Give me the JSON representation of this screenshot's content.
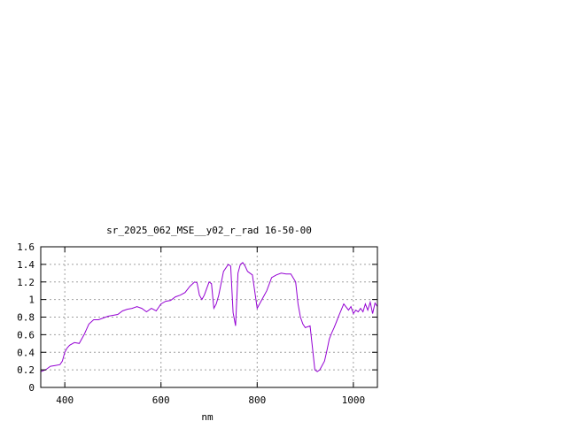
{
  "chart_data": {
    "type": "line",
    "title": "sr_2025_062_MSE__y02_r_rad 16-50-00",
    "xlabel": "nm",
    "ylabel": "",
    "xlim": [
      350,
      1050
    ],
    "ylim": [
      0,
      1.6
    ],
    "xticks": [
      400,
      600,
      800,
      1000
    ],
    "xtick_labels": [
      "400",
      "600",
      "800",
      "1000"
    ],
    "yticks": [
      0,
      0.2,
      0.4,
      0.6,
      0.8,
      1,
      1.2,
      1.4,
      1.6
    ],
    "ytick_labels": [
      "0",
      "0.2",
      "0.4",
      "0.6",
      "0.8",
      "1",
      "1.2",
      "1.4",
      "1.6"
    ],
    "grid": true,
    "legend": "none",
    "line_color": "#9400d3",
    "series": [
      {
        "x": [
          350,
          360,
          370,
          380,
          390,
          395,
          400,
          405,
          410,
          420,
          430,
          440,
          450,
          460,
          470,
          480,
          490,
          500,
          510,
          520,
          530,
          540,
          550,
          560,
          570,
          580,
          590,
          600,
          610,
          620,
          630,
          640,
          650,
          660,
          670,
          675,
          680,
          685,
          690,
          700,
          705,
          710,
          715,
          720,
          730,
          740,
          745,
          750,
          755,
          760,
          765,
          770,
          775,
          780,
          785,
          790,
          800,
          810,
          820,
          830,
          840,
          850,
          860,
          870,
          880,
          885,
          890,
          895,
          900,
          910,
          920,
          925,
          930,
          935,
          940,
          945,
          950,
          955,
          960,
          965,
          970,
          980,
          990,
          995,
          1000,
          1005,
          1010,
          1015,
          1020,
          1025,
          1030,
          1035,
          1040,
          1045,
          1050
        ],
        "y": [
          0.18,
          0.2,
          0.24,
          0.25,
          0.26,
          0.3,
          0.4,
          0.45,
          0.48,
          0.51,
          0.5,
          0.6,
          0.72,
          0.77,
          0.77,
          0.79,
          0.81,
          0.82,
          0.83,
          0.87,
          0.89,
          0.9,
          0.92,
          0.9,
          0.86,
          0.9,
          0.87,
          0.95,
          0.98,
          0.99,
          1.03,
          1.05,
          1.08,
          1.15,
          1.2,
          1.19,
          1.05,
          1.0,
          1.05,
          1.2,
          1.18,
          0.9,
          0.95,
          1.05,
          1.32,
          1.4,
          1.38,
          0.85,
          0.7,
          1.3,
          1.4,
          1.42,
          1.38,
          1.32,
          1.3,
          1.28,
          0.9,
          1.0,
          1.1,
          1.25,
          1.28,
          1.3,
          1.29,
          1.29,
          1.2,
          0.95,
          0.8,
          0.72,
          0.68,
          0.7,
          0.2,
          0.18,
          0.2,
          0.25,
          0.3,
          0.42,
          0.55,
          0.62,
          0.68,
          0.75,
          0.82,
          0.95,
          0.88,
          0.92,
          0.84,
          0.88,
          0.86,
          0.9,
          0.86,
          0.95,
          0.88,
          0.97,
          0.84,
          0.96,
          0.92
        ]
      }
    ]
  }
}
